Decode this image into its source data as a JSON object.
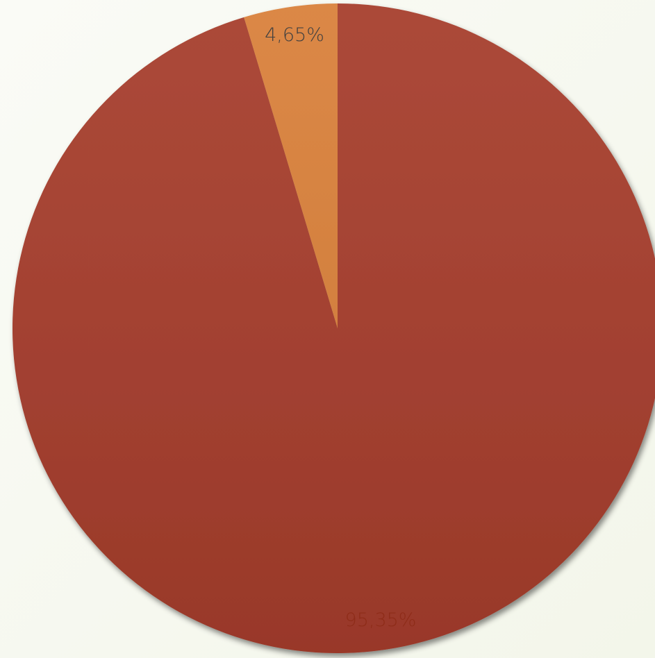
{
  "chart_data": {
    "type": "pie",
    "values": [
      95.35,
      4.65
    ],
    "value_labels": [
      "95,35%",
      "4,65%"
    ],
    "colors": [
      "#a63d2c",
      "#d9803a"
    ],
    "label_colors": [
      "#8e2c18",
      "#404040"
    ]
  }
}
